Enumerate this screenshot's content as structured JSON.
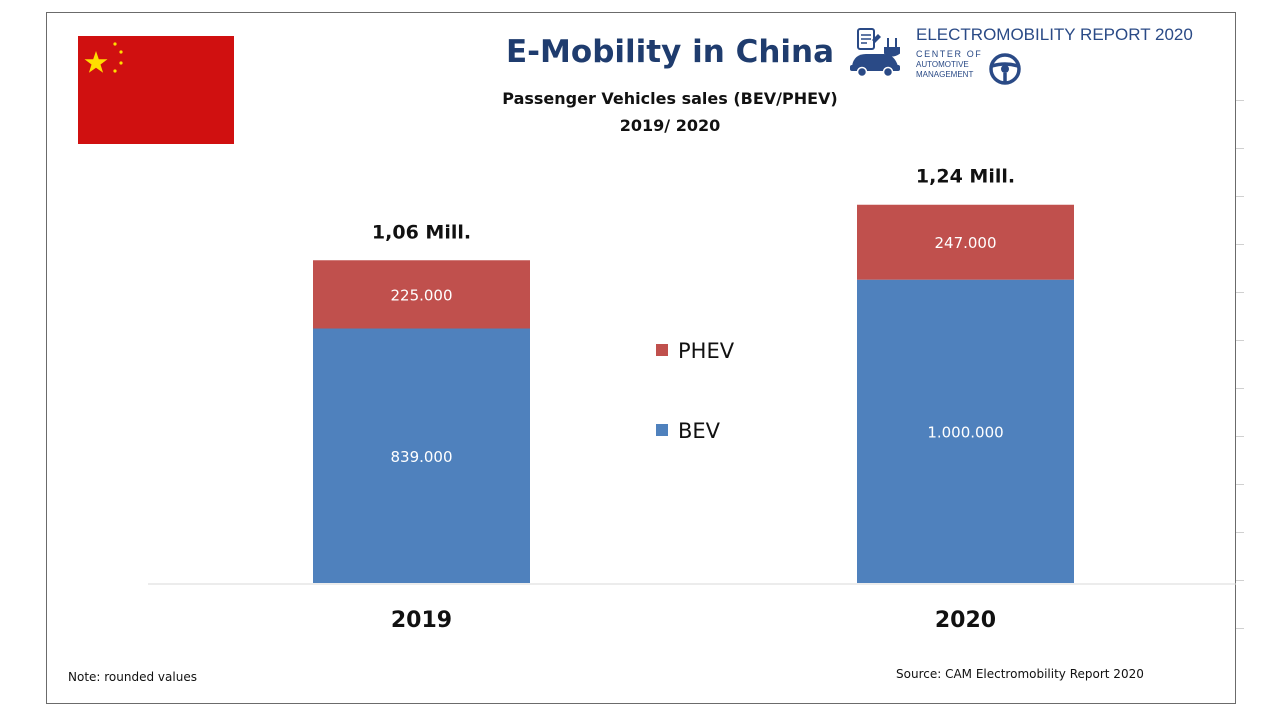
{
  "header": {
    "title": "E-Mobility in China",
    "subtitle": "Passenger Vehicles sales (BEV/PHEV)",
    "subtitle_years": "2019/ 2020",
    "report_title": "ELECTROMOBILITY REPORT 2020",
    "logo_lines": [
      "CENTER OF",
      "AUTOMOTIVE",
      "MANAGEMENT"
    ]
  },
  "colors": {
    "bev": "#4f81bd",
    "phev": "#c0504d",
    "title": "#1f3c6e",
    "flag_red": "#d01010",
    "flag_star": "#ffde00"
  },
  "chart_data": {
    "type": "bar",
    "stacked": true,
    "categories": [
      "2019",
      "2020"
    ],
    "series": [
      {
        "name": "BEV",
        "values": [
          839000,
          1000000
        ],
        "labels": [
          "839.000",
          "1.000.000"
        ],
        "color": "#4f81bd"
      },
      {
        "name": "PHEV",
        "values": [
          225000,
          247000
        ],
        "labels": [
          "225.000",
          "247.000"
        ],
        "color": "#c0504d"
      }
    ],
    "totals": [
      "1,06 Mill.",
      "1,24 Mill."
    ],
    "legend": {
      "position": "center",
      "order": [
        "PHEV",
        "BEV"
      ]
    },
    "ylim": [
      0,
      1500000
    ],
    "grid": false
  },
  "footer": {
    "note": "Note: rounded values",
    "source": "Source: CAM Electromobility Report 2020"
  }
}
